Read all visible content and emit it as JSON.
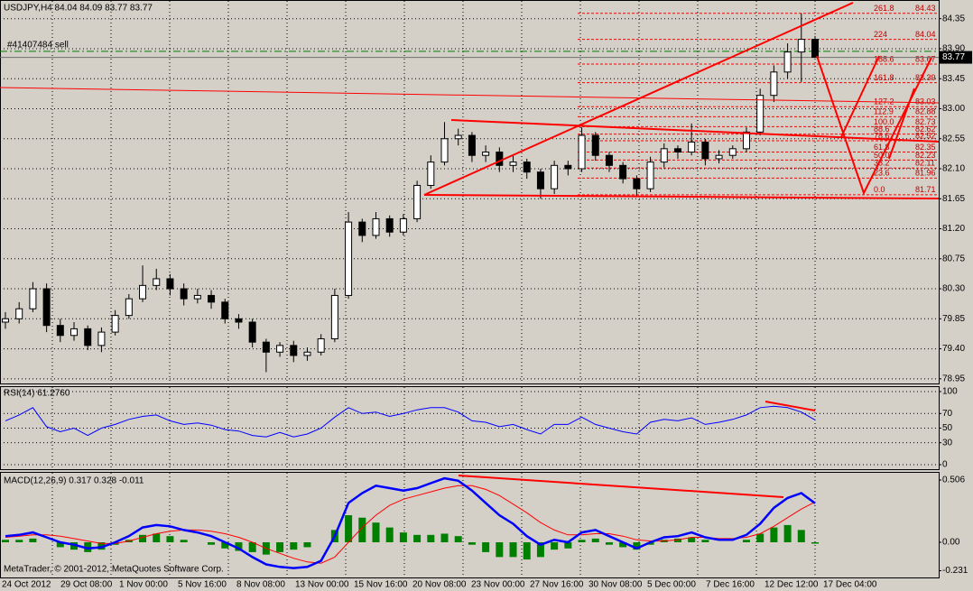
{
  "chart_data": [
    {
      "type": "candlestick",
      "title": "USDJPY,H4  84.04 84.09 83.77 83.77",
      "open": [
        79.8,
        79.85,
        80.0,
        80.3,
        79.75,
        79.6,
        79.7,
        79.45,
        79.65,
        79.9,
        80.15,
        80.35,
        80.45,
        80.3,
        80.15,
        80.2,
        80.1,
        79.85,
        79.8,
        79.5,
        79.35,
        79.45,
        79.3,
        79.35,
        79.55,
        80.2,
        81.3,
        81.1,
        81.35,
        81.15,
        81.35,
        81.85,
        82.2,
        82.55,
        82.6,
        82.3,
        82.35,
        82.15,
        82.2,
        82.05,
        81.8,
        82.15,
        82.1,
        82.6,
        82.3,
        82.15,
        81.95,
        81.8,
        82.2,
        82.4,
        82.35,
        82.5,
        82.25,
        82.3,
        82.4,
        82.65,
        83.2,
        83.55,
        83.85,
        84.04
      ],
      "high": [
        79.95,
        80.1,
        80.4,
        80.38,
        79.85,
        79.8,
        79.75,
        79.72,
        79.98,
        80.22,
        80.65,
        80.6,
        80.52,
        80.38,
        80.3,
        80.28,
        80.15,
        79.92,
        79.85,
        79.55,
        79.5,
        79.52,
        79.42,
        79.62,
        80.3,
        81.45,
        81.35,
        81.45,
        81.4,
        81.42,
        81.92,
        82.3,
        82.8,
        82.7,
        82.65,
        82.45,
        82.42,
        82.3,
        82.25,
        82.1,
        82.22,
        82.22,
        82.72,
        82.65,
        82.35,
        82.2,
        82.0,
        82.28,
        82.48,
        82.45,
        82.78,
        82.55,
        82.38,
        82.45,
        82.72,
        83.3,
        83.65,
        83.98,
        84.43,
        84.09
      ],
      "low": [
        79.7,
        79.78,
        79.95,
        79.65,
        79.5,
        79.52,
        79.38,
        79.35,
        79.6,
        79.85,
        80.1,
        80.28,
        80.2,
        80.05,
        80.08,
        80.0,
        79.78,
        79.7,
        79.42,
        79.05,
        79.28,
        79.2,
        79.22,
        79.3,
        79.5,
        80.15,
        81.0,
        81.05,
        81.08,
        81.1,
        81.3,
        81.8,
        82.15,
        82.45,
        82.2,
        82.2,
        82.05,
        82.05,
        81.95,
        81.65,
        81.72,
        82.0,
        82.05,
        82.22,
        82.05,
        81.88,
        81.68,
        81.75,
        82.12,
        82.25,
        82.3,
        82.15,
        82.18,
        82.25,
        82.35,
        82.6,
        83.1,
        83.45,
        83.4,
        83.77
      ],
      "close": [
        79.85,
        80.0,
        80.3,
        79.75,
        79.6,
        79.7,
        79.45,
        79.65,
        79.9,
        80.15,
        80.35,
        80.45,
        80.3,
        80.15,
        80.2,
        80.1,
        79.85,
        79.8,
        79.5,
        79.35,
        79.45,
        79.3,
        79.35,
        79.55,
        80.2,
        81.3,
        81.1,
        81.35,
        81.15,
        81.35,
        81.85,
        82.2,
        82.55,
        82.6,
        82.3,
        82.35,
        82.15,
        82.2,
        82.05,
        81.8,
        82.15,
        82.1,
        82.6,
        82.3,
        82.15,
        81.95,
        81.8,
        82.2,
        82.4,
        82.35,
        82.5,
        82.25,
        82.3,
        82.4,
        82.65,
        83.2,
        83.55,
        83.85,
        84.04,
        83.77
      ],
      "ylim": [
        78.88,
        84.63
      ],
      "yticks": [
        84.35,
        {
          "value": 83.9,
          "label": "83.90"
        },
        83.45,
        {
          "value": 83.0,
          "label": "83.00"
        },
        82.55,
        {
          "value": 82.1,
          "label": "82.10"
        },
        81.65,
        {
          "value": 81.2,
          "label": "81.20"
        },
        80.75,
        {
          "value": 80.3,
          "label": "80.30"
        },
        79.85,
        {
          "value": 79.4,
          "label": "79.40"
        },
        78.95
      ],
      "grid": true,
      "order": {
        "label": "#41407484 sell",
        "price": 83.86
      },
      "bid": 83.77,
      "fib": {
        "levels": [
          "261.8",
          "224",
          "188.6",
          "161.8",
          "127.2",
          "112.9",
          "100.0",
          "88.6",
          "78.6",
          "61.8",
          "50.0",
          "38.2",
          "23.6",
          "0.0"
        ],
        "prices": [
          84.43,
          84.04,
          83.67,
          83.39,
          83.03,
          82.88,
          82.73,
          82.62,
          82.52,
          82.35,
          82.23,
          82.11,
          81.96,
          81.71
        ]
      }
    },
    {
      "type": "line",
      "title": "RSI(14) 61.2760",
      "color": "#0000ff",
      "values": [
        60,
        68,
        78,
        52,
        45,
        50,
        40,
        50,
        55,
        62,
        66,
        68,
        60,
        55,
        57,
        54,
        48,
        46,
        40,
        38,
        44,
        38,
        42,
        50,
        65,
        78,
        70,
        72,
        66,
        70,
        75,
        78,
        78,
        72,
        60,
        58,
        52,
        55,
        48,
        42,
        55,
        55,
        65,
        55,
        50,
        45,
        42,
        58,
        62,
        60,
        64,
        55,
        58,
        62,
        68,
        78,
        80,
        78,
        72,
        61.276
      ],
      "ylim": [
        -6.2,
        107.4
      ],
      "yticks": [
        100,
        70,
        50,
        30,
        0
      ],
      "grid": true
    },
    {
      "type": "macd",
      "title": "MACD(12,26,9) 0.317 0.328 -0.011",
      "colors": {
        "macd": "#0000ff",
        "signal": "#ff0000",
        "histogram": "#008000"
      },
      "macd": [
        0.05,
        0.06,
        0.08,
        0.04,
        0.0,
        -0.02,
        -0.05,
        -0.04,
        0.0,
        0.05,
        0.12,
        0.14,
        0.13,
        0.1,
        0.08,
        0.05,
        0.0,
        -0.05,
        -0.12,
        -0.18,
        -0.2,
        -0.21,
        -0.2,
        -0.15,
        0.05,
        0.32,
        0.4,
        0.46,
        0.44,
        0.42,
        0.44,
        0.48,
        0.52,
        0.5,
        0.42,
        0.32,
        0.22,
        0.15,
        0.05,
        -0.02,
        0.02,
        0.0,
        0.08,
        0.1,
        0.05,
        0.0,
        -0.05,
        0.0,
        0.04,
        0.05,
        0.08,
        0.04,
        0.02,
        0.02,
        0.06,
        0.15,
        0.28,
        0.36,
        0.4,
        0.317
      ],
      "signal": [
        0.04,
        0.05,
        0.06,
        0.06,
        0.05,
        0.03,
        0.01,
        -0.01,
        -0.01,
        0.01,
        0.04,
        0.07,
        0.09,
        0.1,
        0.1,
        0.09,
        0.07,
        0.04,
        0.0,
        -0.05,
        -0.09,
        -0.13,
        -0.16,
        -0.17,
        -0.12,
        0.0,
        0.12,
        0.22,
        0.3,
        0.35,
        0.38,
        0.41,
        0.44,
        0.46,
        0.46,
        0.43,
        0.38,
        0.31,
        0.24,
        0.16,
        0.1,
        0.06,
        0.06,
        0.07,
        0.07,
        0.05,
        0.02,
        0.01,
        0.01,
        0.02,
        0.04,
        0.04,
        0.03,
        0.03,
        0.04,
        0.07,
        0.13,
        0.2,
        0.27,
        0.328
      ],
      "histogram": [
        0.02,
        0.02,
        0.03,
        0.0,
        -0.04,
        -0.06,
        -0.08,
        -0.06,
        -0.02,
        0.02,
        0.06,
        0.07,
        0.05,
        0.02,
        0.0,
        -0.02,
        -0.05,
        -0.07,
        -0.08,
        -0.1,
        -0.08,
        -0.06,
        -0.04,
        0.0,
        0.1,
        0.22,
        0.2,
        0.16,
        0.12,
        0.08,
        0.06,
        0.06,
        0.07,
        0.05,
        -0.02,
        -0.08,
        -0.12,
        -0.12,
        -0.14,
        -0.12,
        -0.06,
        -0.05,
        0.02,
        0.03,
        -0.02,
        -0.04,
        -0.06,
        -0.02,
        0.02,
        0.03,
        0.04,
        0.02,
        0.0,
        0.0,
        0.02,
        0.07,
        0.12,
        0.14,
        0.1,
        -0.011
      ],
      "ylim": [
        -0.286,
        0.572
      ],
      "yticks": [
        0.506,
        {
          "value": 0,
          "label": "0.00"
        },
        -0.231
      ],
      "footer": "MetaTrader, © 2001-2012, MetaQuotes Software Corp."
    }
  ],
  "x_axis_labels": [
    "24 Oct 2012",
    "29 Oct 08:00",
    "1 Nov 00:00",
    "5 Nov 16:00",
    "8 Nov 08:00",
    "13 Nov 00:00",
    "15 Nov 16:00",
    "20 Nov 08:00",
    "23 Nov 00:00",
    "27 Nov 16:00",
    "30 Nov 08:00",
    "5 Dec 00:00",
    "7 Dec 16:00",
    "12 Dec 12:00",
    "17 Dec 04:00"
  ]
}
